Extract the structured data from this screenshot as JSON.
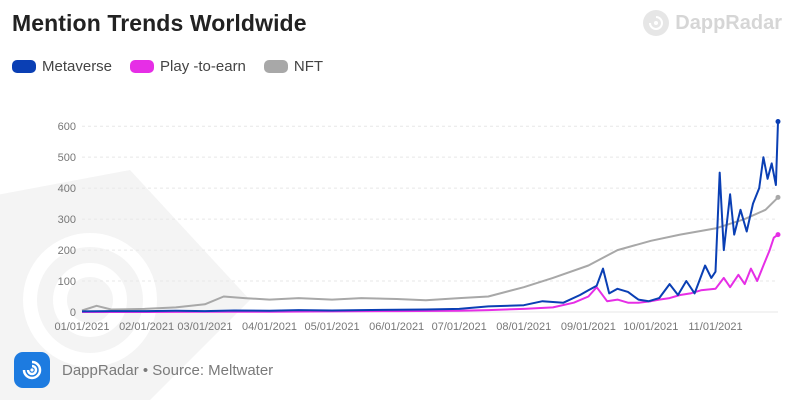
{
  "title": "Mention Trends Worldwide",
  "brand_name": "DappRadar",
  "footer": {
    "source": "DappRadar • Source: Meltwater"
  },
  "legend": [
    {
      "label": "Metaverse",
      "color": "#0a3fb4"
    },
    {
      "label": "Play -to-earn",
      "color": "#e62ee6"
    },
    {
      "label": "NFT",
      "color": "#a8a8a8"
    }
  ],
  "colors": {
    "grid": "#e7e7e7",
    "tick_text": "#777777",
    "accent": "#1d7be0"
  },
  "icons": {
    "brand": "dappradar-logo-icon",
    "footer": "dappradar-logo-icon",
    "watermark": "dappradar-watermark-icon"
  },
  "chart_data": {
    "type": "line",
    "title": "Mention Trends Worldwide",
    "xlabel": "",
    "ylabel": "",
    "ylim": [
      0,
      620
    ],
    "yticks": [
      0,
      100,
      200,
      300,
      400,
      500,
      600
    ],
    "xlim": [
      "2021-01-01",
      "2021-12-01"
    ],
    "xtick_labels": [
      "01/01/2021",
      "02/01/2021",
      "03/01/2021",
      "04/01/2021",
      "05/01/2021",
      "06/01/2021",
      "07/01/2021",
      "08/01/2021",
      "09/01/2021",
      "10/01/2021",
      "11/01/2021"
    ],
    "grid": true,
    "legend_position": "top-left",
    "series": [
      {
        "name": "Metaverse",
        "color": "#0a3fb4",
        "points": [
          [
            "2021-01-01",
            2
          ],
          [
            "2021-01-15",
            3
          ],
          [
            "2021-02-01",
            3
          ],
          [
            "2021-02-15",
            4
          ],
          [
            "2021-03-01",
            3
          ],
          [
            "2021-03-15",
            5
          ],
          [
            "2021-04-01",
            4
          ],
          [
            "2021-04-15",
            6
          ],
          [
            "2021-05-01",
            5
          ],
          [
            "2021-05-15",
            6
          ],
          [
            "2021-06-01",
            7
          ],
          [
            "2021-06-15",
            8
          ],
          [
            "2021-07-01",
            10
          ],
          [
            "2021-07-15",
            18
          ],
          [
            "2021-08-01",
            22
          ],
          [
            "2021-08-10",
            35
          ],
          [
            "2021-08-20",
            30
          ],
          [
            "2021-08-28",
            55
          ],
          [
            "2021-09-01",
            70
          ],
          [
            "2021-09-05",
            85
          ],
          [
            "2021-09-08",
            140
          ],
          [
            "2021-09-11",
            60
          ],
          [
            "2021-09-15",
            75
          ],
          [
            "2021-09-20",
            65
          ],
          [
            "2021-09-25",
            40
          ],
          [
            "2021-09-30",
            35
          ],
          [
            "2021-10-05",
            45
          ],
          [
            "2021-10-10",
            90
          ],
          [
            "2021-10-14",
            55
          ],
          [
            "2021-10-18",
            100
          ],
          [
            "2021-10-22",
            60
          ],
          [
            "2021-10-27",
            150
          ],
          [
            "2021-10-30",
            110
          ],
          [
            "2021-11-01",
            130
          ],
          [
            "2021-11-03",
            450
          ],
          [
            "2021-11-05",
            200
          ],
          [
            "2021-11-08",
            380
          ],
          [
            "2021-11-10",
            250
          ],
          [
            "2021-11-13",
            330
          ],
          [
            "2021-11-16",
            260
          ],
          [
            "2021-11-19",
            350
          ],
          [
            "2021-11-22",
            400
          ],
          [
            "2021-11-24",
            500
          ],
          [
            "2021-11-26",
            430
          ],
          [
            "2021-11-28",
            480
          ],
          [
            "2021-11-30",
            410
          ],
          [
            "2021-12-01",
            615
          ]
        ]
      },
      {
        "name": "Play -to-earn",
        "color": "#e62ee6",
        "points": [
          [
            "2021-01-01",
            0
          ],
          [
            "2021-02-01",
            0
          ],
          [
            "2021-03-01",
            1
          ],
          [
            "2021-04-01",
            1
          ],
          [
            "2021-05-01",
            2
          ],
          [
            "2021-06-01",
            3
          ],
          [
            "2021-07-01",
            4
          ],
          [
            "2021-07-15",
            6
          ],
          [
            "2021-08-01",
            10
          ],
          [
            "2021-08-15",
            15
          ],
          [
            "2021-08-25",
            30
          ],
          [
            "2021-09-01",
            50
          ],
          [
            "2021-09-05",
            80
          ],
          [
            "2021-09-10",
            35
          ],
          [
            "2021-09-15",
            40
          ],
          [
            "2021-09-20",
            30
          ],
          [
            "2021-09-25",
            30
          ],
          [
            "2021-10-01",
            35
          ],
          [
            "2021-10-05",
            40
          ],
          [
            "2021-10-10",
            45
          ],
          [
            "2021-10-15",
            55
          ],
          [
            "2021-10-20",
            60
          ],
          [
            "2021-10-25",
            70
          ],
          [
            "2021-11-01",
            75
          ],
          [
            "2021-11-05",
            110
          ],
          [
            "2021-11-08",
            80
          ],
          [
            "2021-11-12",
            120
          ],
          [
            "2021-11-15",
            90
          ],
          [
            "2021-11-18",
            140
          ],
          [
            "2021-11-21",
            100
          ],
          [
            "2021-11-24",
            150
          ],
          [
            "2021-11-27",
            200
          ],
          [
            "2021-11-29",
            240
          ],
          [
            "2021-12-01",
            250
          ]
        ]
      },
      {
        "name": "NFT",
        "color": "#a8a8a8",
        "points": [
          [
            "2021-01-01",
            5
          ],
          [
            "2021-01-08",
            20
          ],
          [
            "2021-01-15",
            8
          ],
          [
            "2021-01-31",
            10
          ],
          [
            "2021-02-15",
            15
          ],
          [
            "2021-03-01",
            25
          ],
          [
            "2021-03-10",
            50
          ],
          [
            "2021-03-20",
            45
          ],
          [
            "2021-04-01",
            40
          ],
          [
            "2021-04-15",
            45
          ],
          [
            "2021-05-01",
            40
          ],
          [
            "2021-05-15",
            45
          ],
          [
            "2021-06-01",
            42
          ],
          [
            "2021-06-15",
            38
          ],
          [
            "2021-07-01",
            45
          ],
          [
            "2021-07-15",
            50
          ],
          [
            "2021-08-01",
            80
          ],
          [
            "2021-08-15",
            110
          ],
          [
            "2021-09-01",
            150
          ],
          [
            "2021-09-15",
            200
          ],
          [
            "2021-10-01",
            230
          ],
          [
            "2021-10-15",
            250
          ],
          [
            "2021-11-01",
            270
          ],
          [
            "2021-11-15",
            300
          ],
          [
            "2021-11-25",
            330
          ],
          [
            "2021-12-01",
            370
          ]
        ]
      }
    ]
  }
}
